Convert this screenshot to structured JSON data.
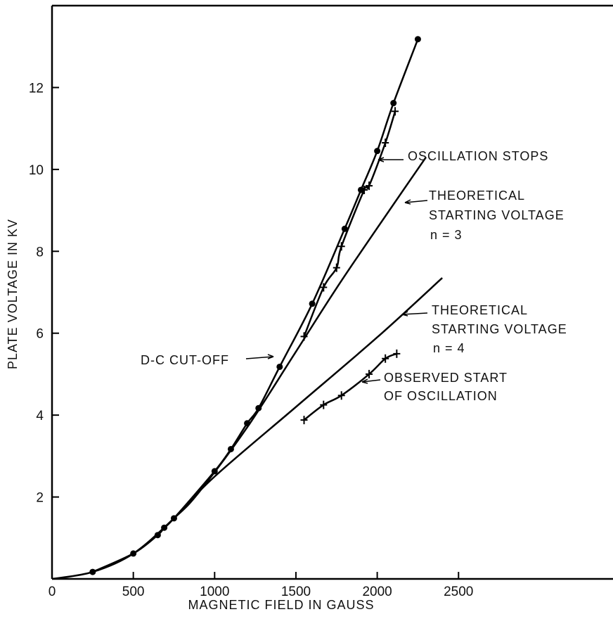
{
  "chart_data": {
    "type": "line",
    "xlabel": "MAGNETIC FIELD IN GAUSS",
    "ylabel": "PLATE VOLTAGE IN KV",
    "xlim": [
      0,
      3450
    ],
    "ylim": [
      0,
      14
    ],
    "x_ticks": [
      0,
      500,
      1000,
      1500,
      2000,
      2500
    ],
    "y_ticks": [
      2,
      4,
      6,
      8,
      10,
      12
    ],
    "x_tick_labels": [
      "0",
      "500",
      "1000",
      "1500",
      "2000",
      "2500"
    ],
    "y_tick_labels": [
      "2",
      "4",
      "6",
      "8",
      "10",
      "12"
    ],
    "grid": false,
    "series": [
      {
        "name": "D-C CUT-OFF",
        "marker": "dot",
        "x": [
          250,
          500,
          650,
          690,
          750,
          1000,
          1100,
          1200,
          1270,
          1400,
          1600,
          1800,
          1900,
          2000,
          2100,
          2250
        ],
        "y": [
          0.17,
          0.62,
          1.07,
          1.25,
          1.48,
          2.63,
          3.17,
          3.8,
          4.17,
          5.18,
          6.72,
          8.55,
          9.5,
          10.45,
          11.62,
          13.18
        ]
      },
      {
        "name": "OSCILLATION STOPS",
        "marker": "cross",
        "x": [
          1550,
          1670,
          1750,
          1780,
          1920,
          1950,
          2050,
          2110
        ],
        "y": [
          5.92,
          7.12,
          7.6,
          8.12,
          9.5,
          9.6,
          10.65,
          11.42
        ]
      },
      {
        "name": "THEORETICAL STARTING VOLTAGE n = 3",
        "marker": "none",
        "x": [
          0,
          250,
          500,
          750,
          900,
          1200,
          1500,
          1800,
          2300
        ],
        "y": [
          0,
          0.17,
          0.62,
          1.48,
          2.1,
          3.7,
          5.55,
          7.4,
          10.3
        ]
      },
      {
        "name": "THEORETICAL STARTING VOLTAGE n = 4",
        "marker": "none",
        "x": [
          750,
          1000,
          1500,
          2000,
          2400
        ],
        "y": [
          1.48,
          2.5,
          4.2,
          5.9,
          7.35
        ]
      },
      {
        "name": "OBSERVED START OF OSCILLATION",
        "marker": "cross",
        "x": [
          1550,
          1670,
          1780,
          1950,
          2050,
          2120
        ],
        "y": [
          3.88,
          4.25,
          4.48,
          5.0,
          5.38,
          5.5
        ]
      }
    ],
    "annotations": {
      "oscillation_stops": "OSCILLATION STOPS",
      "theoretical_1_line1": "THEORETICAL",
      "theoretical_1_line2": "STARTING VOLTAGE",
      "theoretical_1_line3": "n = 3",
      "theoretical_2_line1": "THEORETICAL",
      "theoretical_2_line2": "STARTING VOLTAGE",
      "theoretical_2_line3": "n = 4",
      "dc_cutoff": "D-C CUT-OFF",
      "observed_line1": "OBSERVED START",
      "observed_line2": "OF OSCILLATION"
    }
  }
}
